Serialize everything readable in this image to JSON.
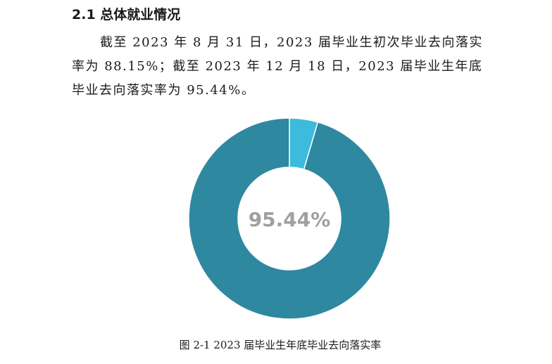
{
  "section": {
    "title": "2.1 总体就业情况"
  },
  "paragraph": {
    "text": "截至 2023 年 8 月 31 日，2023 届毕业生初次毕业去向落实率为 88.15%；截至 2023 年 12 月 18 日，2023 届毕业生年底毕业去向落实率为 95.44%。"
  },
  "chart_data": {
    "type": "pie",
    "variant": "donut",
    "slices": [
      {
        "value": 95.44,
        "color": "#2e88a0"
      },
      {
        "value": 4.56,
        "color": "#3dbbdc"
      }
    ],
    "center_label": "95.44%",
    "center_label_color": "#a0a0a0",
    "caption": "图 2-1 2023 届毕业生年底毕业去向落实率"
  }
}
